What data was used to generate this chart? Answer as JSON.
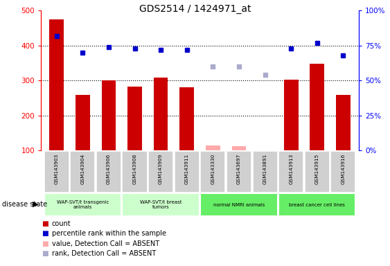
{
  "title": "GDS2514 / 1424971_at",
  "samples": [
    "GSM143903",
    "GSM143904",
    "GSM143906",
    "GSM143908",
    "GSM143909",
    "GSM143911",
    "GSM143330",
    "GSM143697",
    "GSM143891",
    "GSM143913",
    "GSM143915",
    "GSM143916"
  ],
  "count_values": [
    475,
    258,
    300,
    282,
    309,
    280,
    null,
    null,
    null,
    302,
    348,
    258
  ],
  "count_absent": [
    null,
    null,
    null,
    null,
    null,
    null,
    113,
    112,
    null,
    null,
    null,
    null
  ],
  "rank_values": [
    82,
    70,
    74,
    73,
    72,
    72,
    null,
    null,
    null,
    73,
    77,
    68
  ],
  "rank_absent": [
    null,
    null,
    null,
    null,
    null,
    null,
    null,
    null,
    54,
    null,
    null,
    null
  ],
  "rank_absent2": [
    null,
    null,
    null,
    null,
    null,
    null,
    60,
    60,
    null,
    null,
    null,
    null
  ],
  "ylim_left": [
    100,
    500
  ],
  "ylim_right": [
    0,
    100
  ],
  "yticks_left": [
    100,
    200,
    300,
    400,
    500
  ],
  "yticks_right": [
    0,
    25,
    50,
    75,
    100
  ],
  "ytick_labels_right": [
    "0%",
    "25%",
    "50%",
    "75%",
    "100%"
  ],
  "bar_color": "#cc0000",
  "absent_bar_color": "#ffaaaa",
  "rank_color": "#0000cc",
  "rank_absent_color": "#aaaacc",
  "group_spans": [
    [
      0,
      2,
      "WAP-SVT/t transgenic\nanimals",
      "#ccffcc"
    ],
    [
      3,
      5,
      "WAP-SVT/t breast\ntumors",
      "#ccffcc"
    ],
    [
      6,
      8,
      "normal NMRI animals",
      "#66ee66"
    ],
    [
      9,
      11,
      "breast cancer cell lines",
      "#66ee66"
    ]
  ]
}
